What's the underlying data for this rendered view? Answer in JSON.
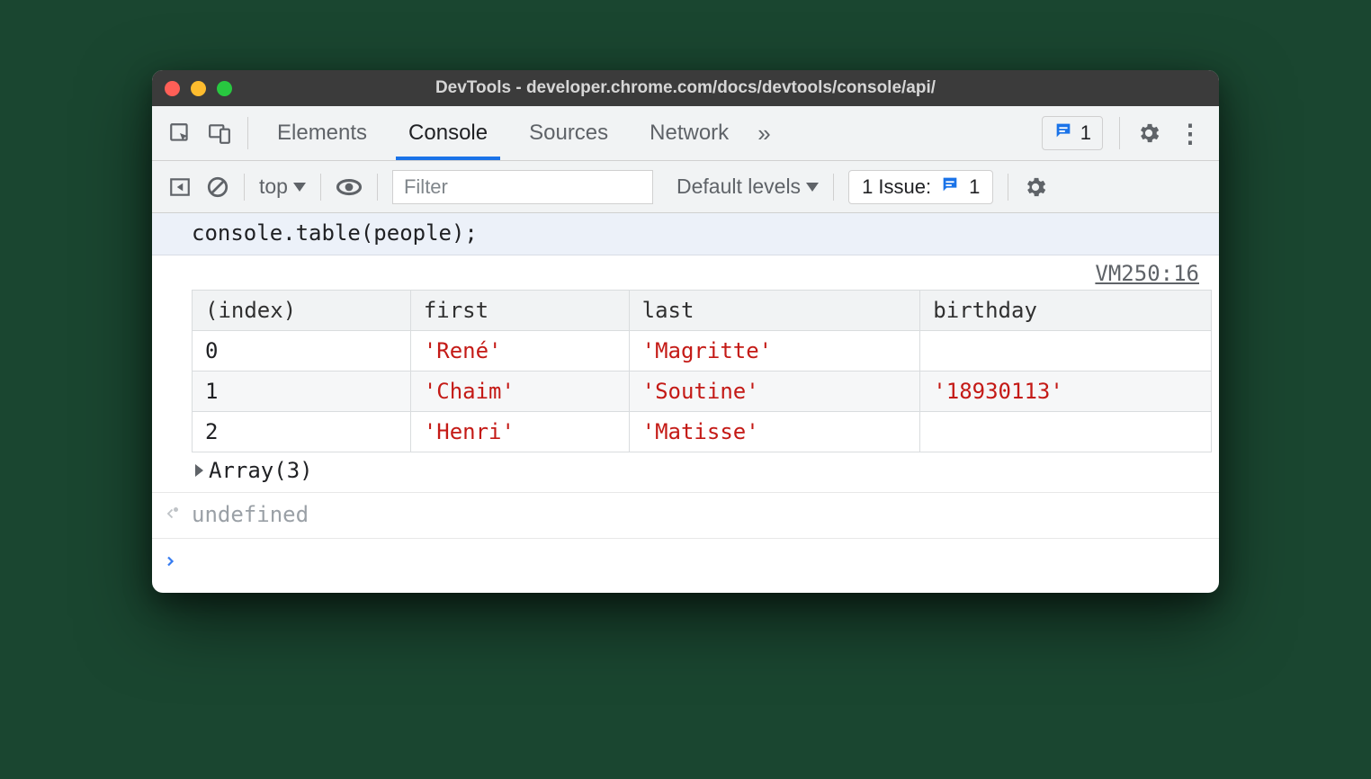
{
  "window": {
    "title": "DevTools - developer.chrome.com/docs/devtools/console/api/"
  },
  "tabs": {
    "items": [
      "Elements",
      "Console",
      "Sources",
      "Network"
    ],
    "activeIndex": 1,
    "issues_count": "1"
  },
  "toolbar": {
    "context": "top",
    "filter_placeholder": "Filter",
    "levels": "Default levels",
    "issues_label": "1 Issue:",
    "issues_count": "1"
  },
  "code": {
    "line": "console.table(people);",
    "source_link": "VM250:16"
  },
  "table": {
    "columns": [
      "(index)",
      "first",
      "last",
      "birthday"
    ],
    "rows": [
      {
        "index": "0",
        "first": "'René'",
        "last": "'Magritte'",
        "birthday": ""
      },
      {
        "index": "1",
        "first": "'Chaim'",
        "last": "'Soutine'",
        "birthday": "'18930113'"
      },
      {
        "index": "2",
        "first": "'Henri'",
        "last": "'Matisse'",
        "birthday": ""
      }
    ],
    "summary": "Array(3)"
  },
  "return_value": "undefined",
  "colors": {
    "string": "#c41a16",
    "accent": "#1a73e8",
    "toolbar_bg": "#f1f3f4",
    "border": "#d0d0d0"
  }
}
